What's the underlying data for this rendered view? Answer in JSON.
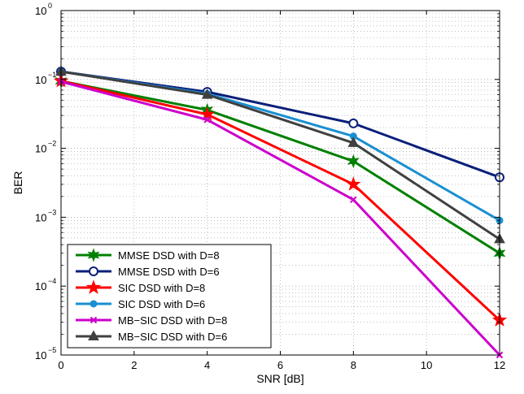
{
  "chart_data": {
    "type": "line",
    "title": "",
    "xlabel": "SNR [dB]",
    "ylabel": "BER",
    "x": [
      0,
      4,
      8,
      12
    ],
    "xlim": [
      0,
      12
    ],
    "ylim": [
      1e-05,
      1
    ],
    "yscale": "log",
    "grid": true,
    "legend_position": "bottom-left",
    "x_ticks": [
      0,
      2,
      4,
      6,
      8,
      10,
      12
    ],
    "x_tick_labels": [
      "0",
      "2",
      "4",
      "6",
      "8",
      "10",
      "12"
    ],
    "y_ticks": [
      1e-05,
      0.0001,
      0.001,
      0.01,
      0.1,
      1
    ],
    "y_tick_labels": [
      {
        "base": "10",
        "exp": "−5"
      },
      {
        "base": "10",
        "exp": "−4"
      },
      {
        "base": "10",
        "exp": "−3"
      },
      {
        "base": "10",
        "exp": "−2"
      },
      {
        "base": "10",
        "exp": "−1"
      },
      {
        "base": "10",
        "exp": "0"
      }
    ],
    "series": [
      {
        "name": "MMSE DSD with D=8",
        "color": "#008000",
        "marker": "star6",
        "values": [
          0.095,
          0.036,
          0.0065,
          0.0003
        ]
      },
      {
        "name": "MMSE DSD with D=6",
        "color": "#0b1f7a",
        "marker": "circle-open",
        "values": [
          0.13,
          0.066,
          0.023,
          0.0038
        ]
      },
      {
        "name": "SIC DSD with D=8",
        "color": "#ff0000",
        "marker": "star5",
        "values": [
          0.095,
          0.031,
          0.003,
          3.2e-05
        ]
      },
      {
        "name": "SIC DSD with D=6",
        "color": "#1a8fd1",
        "marker": "dot",
        "values": [
          0.13,
          0.062,
          0.015,
          0.0009
        ]
      },
      {
        "name": "MB−SIC DSD with D=8",
        "color": "#cc00cc",
        "marker": "x",
        "values": [
          0.093,
          0.026,
          0.0018,
          1e-05
        ]
      },
      {
        "name": "MB−SIC DSD with D=6",
        "color": "#404040",
        "marker": "triangle",
        "values": [
          0.13,
          0.06,
          0.012,
          0.00048
        ]
      }
    ]
  }
}
